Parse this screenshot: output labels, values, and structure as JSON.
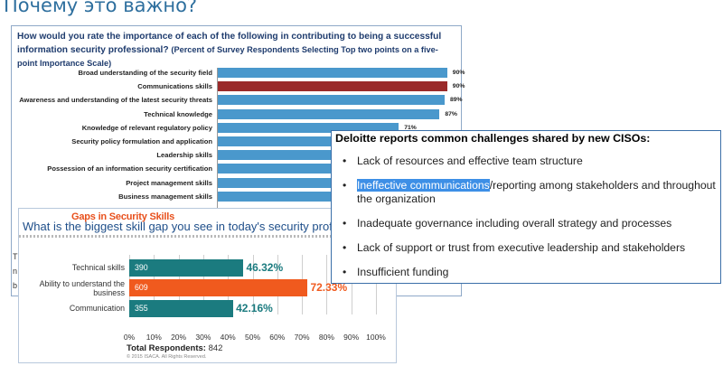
{
  "slide": {
    "title": "Почему это важно?"
  },
  "importance_chart": {
    "question": "How would you rate the importance of each of the following in contributing to being a successful information security professional?",
    "subtitle": "(Percent of Survey Respondents Selecting Top two points on a five-point Importance Scale)",
    "colors": {
      "bar": "#4a98cc",
      "highlight": "#9a2a2a"
    },
    "rows": [
      {
        "label": "Broad understanding of the security field",
        "value": "90%",
        "pct": 90
      },
      {
        "label": "Communications skills",
        "value": "90%",
        "pct": 90,
        "highlight": true
      },
      {
        "label": "Awareness and understanding of the latest security threats",
        "value": "89%",
        "pct": 89
      },
      {
        "label": "Technical knowledge",
        "value": "87%",
        "pct": 87
      },
      {
        "label": "Knowledge of relevant regulatory policy",
        "value": "71%",
        "pct": 71
      },
      {
        "label": "Security policy formulation and application",
        "value": "",
        "pct": 70
      },
      {
        "label": "Leadership skills",
        "value": "",
        "pct": 69
      },
      {
        "label": "Possession of an information security certification",
        "value": "",
        "pct": 69
      },
      {
        "label": "Project management skills",
        "value": "",
        "pct": 66
      },
      {
        "label": "Business management skills",
        "value": "",
        "pct": 65
      }
    ]
  },
  "deloitte": {
    "title": "Deloitte reports common challenges shared by new CISOs:",
    "bullet": "•",
    "items": [
      {
        "text": "Lack of resources and effective team structure"
      },
      {
        "highlight": "Ineffective communications",
        "text": "/reporting among stakeholders and throughout the organization"
      },
      {
        "text": "Inadequate governance including overall strategy and processes"
      },
      {
        "text": "Lack of support or trust from executive leadership and stakeholders"
      },
      {
        "text": "Insufficient funding"
      }
    ]
  },
  "skills_gap": {
    "header": "Gaps in Security Skills",
    "question": "What is the biggest skill gap you see in today's security profes",
    "colors": {
      "teal": "#1b7b7f",
      "orange": "#f05a1e"
    },
    "chart_data": {
      "type": "bar",
      "categories": [
        "Technical skills",
        "Ability to understand the business",
        "Communication"
      ],
      "counts": [
        "390",
        "609",
        "355"
      ],
      "values": [
        46.32,
        72.33,
        42.16
      ],
      "value_labels": [
        "46.32%",
        "72.33%",
        "42.16%"
      ],
      "xlim": [
        0,
        100
      ],
      "ticks": [
        "0%",
        "10%",
        "20%",
        "30%",
        "40%",
        "50%",
        "60%",
        "70%",
        "80%",
        "90%",
        "100%"
      ]
    },
    "total_label": "Total Respondents:",
    "total_value": "842",
    "copyright": "© 2015 ISACA. All Rights Reserved."
  },
  "fragments": {
    "t": "T",
    "n": "n",
    "b": "b"
  }
}
